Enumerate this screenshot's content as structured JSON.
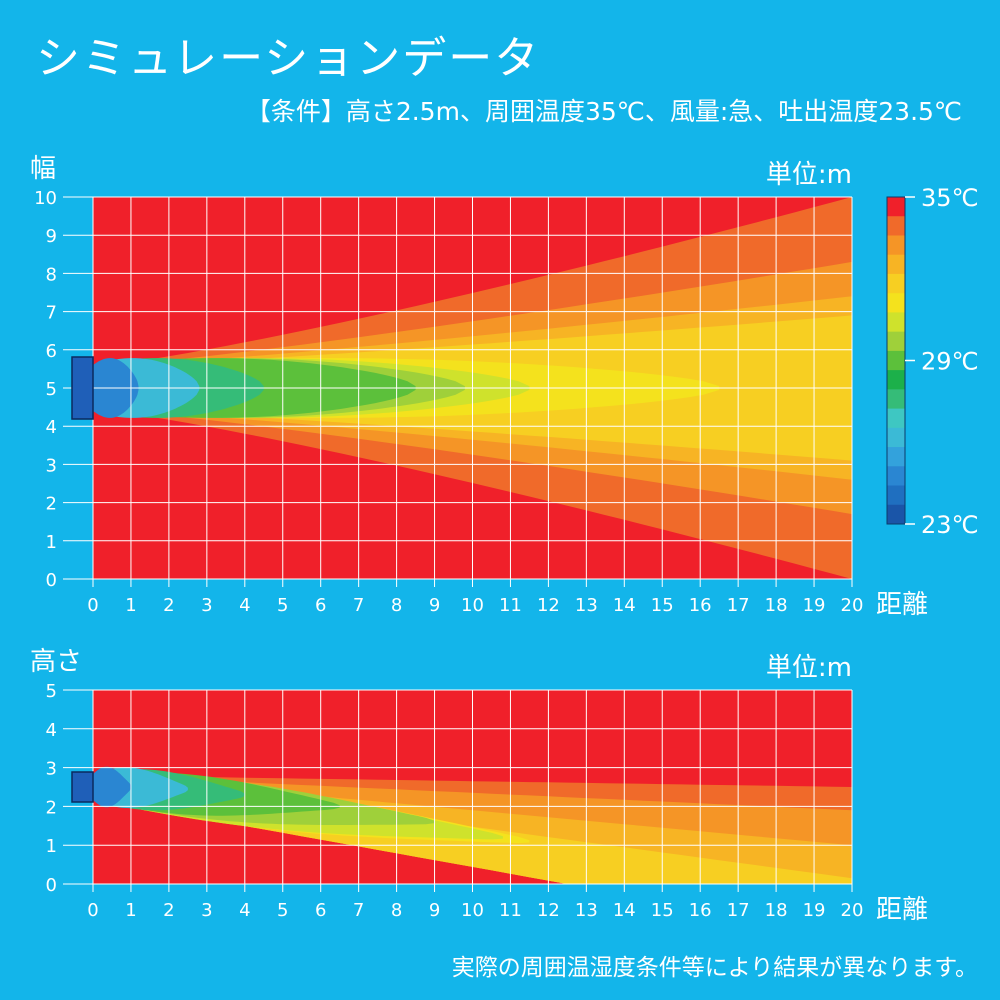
{
  "title": "シミュレーションデータ",
  "conditions": "【条件】高さ2.5m、周囲温度35℃、風量:急、吐出温度23.5℃",
  "footnote": "実際の周囲温湿度条件等により結果が異なります。",
  "colors": {
    "background": "#13b5ea",
    "scale": [
      "#1a55a8",
      "#1f6fc0",
      "#2a86d2",
      "#33a2dc",
      "#3bbad6",
      "#3ec7c2",
      "#35bc78",
      "#1cb04a",
      "#5cc03b",
      "#9fd03a",
      "#cfe22c",
      "#f4e21d",
      "#f7cf22",
      "#f7b424",
      "#f59526",
      "#f06a2a",
      "#f0202a"
    ]
  },
  "colorbar": {
    "labels": [
      "35℃",
      "29℃",
      "23℃"
    ],
    "values": [
      35,
      29,
      23
    ]
  },
  "chart_data": [
    {
      "type": "heatmap",
      "name": "plan-view",
      "ylabel": "幅",
      "xlabel": "距離",
      "unit": "単位:m",
      "xlim": [
        0,
        20
      ],
      "ylim": [
        0,
        10
      ],
      "x_ticks": [
        "0",
        "1",
        "2",
        "3",
        "4",
        "5",
        "6",
        "7",
        "8",
        "9",
        "10",
        "11",
        "12",
        "13",
        "14",
        "15",
        "16",
        "17",
        "18",
        "19",
        "20"
      ],
      "y_ticks": [
        "0",
        "1",
        "2",
        "3",
        "4",
        "5",
        "6",
        "7",
        "8",
        "9",
        "10"
      ],
      "outlet": {
        "x": 0,
        "y": 5,
        "temperature": 23.5
      },
      "plume_levels_c": [
        {
          "temp": 34.3,
          "x_end": 20.0,
          "half_width_at_end": 5.0
        },
        {
          "temp": 33.5,
          "x_end": 20.0,
          "half_width_at_end": 3.3
        },
        {
          "temp": 32.8,
          "x_end": 20.0,
          "half_width_at_end": 2.4
        },
        {
          "temp": 32.0,
          "x_end": 20.0,
          "half_width_at_end": 1.9
        },
        {
          "temp": 31.2,
          "x_end": 16.5,
          "half_width_at_end": 0.3
        },
        {
          "temp": 30.4,
          "x_end": 11.5,
          "half_width_at_end": 0.2
        },
        {
          "temp": 29.6,
          "x_end": 9.8,
          "half_width_at_end": 0.2
        },
        {
          "temp": 28.8,
          "x_end": 8.5,
          "half_width_at_end": 0.2
        },
        {
          "temp": 27.5,
          "x_end": 4.5,
          "half_width_at_end": 0.2
        },
        {
          "temp": 26.0,
          "x_end": 2.8,
          "half_width_at_end": 0.2
        },
        {
          "temp": 24.5,
          "x_end": 1.2,
          "half_width_at_end": 0.1
        }
      ]
    },
    {
      "type": "heatmap",
      "name": "side-view",
      "ylabel": "高さ",
      "xlabel": "距離",
      "unit": "単位:m",
      "xlim": [
        0,
        20
      ],
      "ylim": [
        0,
        5
      ],
      "x_ticks": [
        "0",
        "1",
        "2",
        "3",
        "4",
        "5",
        "6",
        "7",
        "8",
        "9",
        "10",
        "11",
        "12",
        "13",
        "14",
        "15",
        "16",
        "17",
        "18",
        "19",
        "20"
      ],
      "y_ticks": [
        "0",
        "1",
        "2",
        "3",
        "4",
        "5"
      ],
      "outlet": {
        "x": 0,
        "y": 2.5,
        "temperature": 23.5
      },
      "plume_levels_c": [
        {
          "temp": 34.3,
          "x_end": 20.0,
          "top_at_end": 2.5,
          "bottom_at_end": 0
        },
        {
          "temp": 33.5,
          "x_end": 20.0,
          "top_at_end": 1.9,
          "bottom_at_end": 0
        },
        {
          "temp": 32.8,
          "x_end": 20.0,
          "top_at_end": 1.0,
          "bottom_at_end": 0
        },
        {
          "temp": 32.0,
          "x_end": 20.0,
          "top_at_end": 0.15,
          "bottom_at_end": 0
        },
        {
          "temp": 31.2,
          "x_end": 11.5,
          "top_at_end": 1.1,
          "bottom_at_end": 1.1
        },
        {
          "temp": 30.4,
          "x_end": 10.8,
          "top_at_end": 1.2,
          "bottom_at_end": 1.2
        },
        {
          "temp": 29.6,
          "x_end": 9.0,
          "top_at_end": 1.6,
          "bottom_at_end": 1.6
        },
        {
          "temp": 28.8,
          "x_end": 6.5,
          "top_at_end": 2.0,
          "bottom_at_end": 2.0
        },
        {
          "temp": 27.5,
          "x_end": 4.0,
          "top_at_end": 2.3,
          "bottom_at_end": 2.3
        },
        {
          "temp": 26.0,
          "x_end": 2.5,
          "top_at_end": 2.45,
          "bottom_at_end": 2.45
        },
        {
          "temp": 24.5,
          "x_end": 1.0,
          "top_at_end": 2.5,
          "bottom_at_end": 2.5
        }
      ]
    }
  ]
}
